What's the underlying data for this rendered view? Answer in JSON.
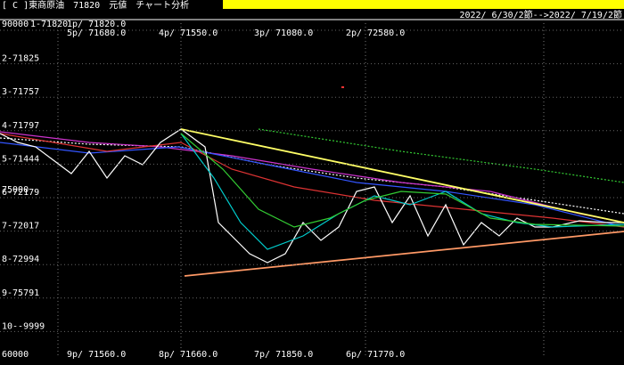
{
  "header": {
    "title": "[ C ]東商原油　71820　元値　チャート分析",
    "range": "2022/ 6/30/2節-->2022/ 7/19/2節"
  },
  "axis": {
    "top": "90000",
    "middle": "75000",
    "bottom": "60000"
  },
  "rows": [
    "1-71820",
    "2-71825",
    "3-71757",
    "4-71797",
    "5-71444",
    "6-72179",
    "7-72017",
    "8-72994",
    "9-75791",
    "10--9999"
  ],
  "top_labels": [
    "1p/ 71820.0",
    "5p/ 71680.0",
    "4p/ 71550.0",
    "3p/ 71080.0",
    "2p/ 72580.0"
  ],
  "bottom_labels": [
    "9p/ 71560.0",
    "8p/ 71660.0",
    "7p/ 71850.0",
    "6p/ 71770.0"
  ]
}
